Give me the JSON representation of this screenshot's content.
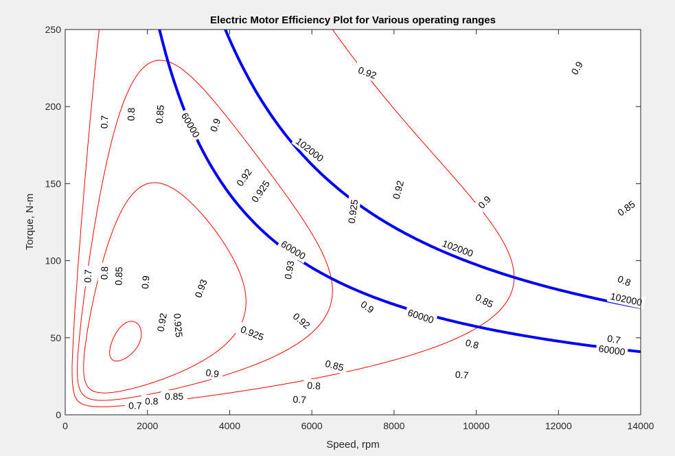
{
  "chart_data": {
    "type": "contour",
    "title": "Electric Motor Efficiency Plot for Various operating ranges",
    "xlabel": "Speed, rpm",
    "ylabel": "Torque, N-m",
    "xlim": [
      0,
      14000
    ],
    "ylim": [
      0,
      250
    ],
    "xticks": [
      0,
      2000,
      4000,
      6000,
      8000,
      10000,
      12000,
      14000
    ],
    "yticks": [
      0,
      50,
      100,
      150,
      200,
      250
    ],
    "grid": false,
    "efficiency_contours": {
      "color": "#ff0000",
      "levels": [
        0.7,
        0.8,
        0.85,
        0.9,
        0.92,
        0.925,
        0.93
      ],
      "labels": [
        {
          "text": "0.7",
          "x": 950,
          "y": 190,
          "angle": -88
        },
        {
          "text": "0.8",
          "x": 1600,
          "y": 195,
          "angle": -88
        },
        {
          "text": "0.85",
          "x": 2300,
          "y": 195,
          "angle": -85
        },
        {
          "text": "0.9",
          "x": 3650,
          "y": 188,
          "angle": -70
        },
        {
          "text": "0.92",
          "x": 7350,
          "y": 222,
          "angle": 20
        },
        {
          "text": "0.9",
          "x": 12450,
          "y": 225,
          "angle": -60
        },
        {
          "text": "0.92",
          "x": 4350,
          "y": 154,
          "angle": -55
        },
        {
          "text": "0.925",
          "x": 4750,
          "y": 145,
          "angle": -55
        },
        {
          "text": "0.925",
          "x": 7000,
          "y": 132,
          "angle": -82
        },
        {
          "text": "0.92",
          "x": 8100,
          "y": 146,
          "angle": -75
        },
        {
          "text": "0.9",
          "x": 10200,
          "y": 138,
          "angle": -45
        },
        {
          "text": "0.85",
          "x": 13650,
          "y": 134,
          "angle": -35
        },
        {
          "text": "0.7",
          "x": 550,
          "y": 90,
          "angle": -88
        },
        {
          "text": "0.8",
          "x": 950,
          "y": 92,
          "angle": -88
        },
        {
          "text": "0.85",
          "x": 1300,
          "y": 90,
          "angle": -88
        },
        {
          "text": "0.9",
          "x": 1950,
          "y": 86,
          "angle": -85
        },
        {
          "text": "0.93",
          "x": 3300,
          "y": 82,
          "angle": -70
        },
        {
          "text": "0.93",
          "x": 5450,
          "y": 94,
          "angle": -80
        },
        {
          "text": "0.92",
          "x": 2350,
          "y": 60,
          "angle": -80
        },
        {
          "text": "0.925",
          "x": 2750,
          "y": 58,
          "angle": 85
        },
        {
          "text": "0.925",
          "x": 4550,
          "y": 53,
          "angle": 22
        },
        {
          "text": "0.92",
          "x": 5750,
          "y": 61,
          "angle": 40
        },
        {
          "text": "0.9",
          "x": 7350,
          "y": 70,
          "angle": 35
        },
        {
          "text": "0.85",
          "x": 10200,
          "y": 74,
          "angle": 28
        },
        {
          "text": "0.8",
          "x": 13600,
          "y": 87,
          "angle": 22
        },
        {
          "text": "0.9",
          "x": 3580,
          "y": 27,
          "angle": 8
        },
        {
          "text": "0.85",
          "x": 6550,
          "y": 32,
          "angle": 15
        },
        {
          "text": "0.8",
          "x": 9900,
          "y": 46,
          "angle": 15
        },
        {
          "text": "0.7",
          "x": 13350,
          "y": 49,
          "angle": 10
        },
        {
          "text": "0.85",
          "x": 2650,
          "y": 12,
          "angle": 0
        },
        {
          "text": "0.8",
          "x": 6050,
          "y": 19,
          "angle": 4
        },
        {
          "text": "0.7",
          "x": 9650,
          "y": 26,
          "angle": 5
        },
        {
          "text": "0.8",
          "x": 2100,
          "y": 9,
          "angle": 0
        },
        {
          "text": "0.7",
          "x": 1700,
          "y": 6,
          "angle": 0
        },
        {
          "text": "0.7",
          "x": 5700,
          "y": 10,
          "angle": 3
        }
      ]
    },
    "power_contours": {
      "color": "#0000ff",
      "levels": [
        60000,
        102000
      ],
      "labels": [
        {
          "text": "60000",
          "x": 3050,
          "y": 188,
          "angle": 60
        },
        {
          "text": "60000",
          "x": 5550,
          "y": 107,
          "angle": 32
        },
        {
          "text": "60000",
          "x": 8650,
          "y": 64,
          "angle": 18
        },
        {
          "text": "60000",
          "x": 13300,
          "y": 42,
          "angle": 8
        },
        {
          "text": "102000",
          "x": 5950,
          "y": 172,
          "angle": 38
        },
        {
          "text": "102000",
          "x": 9550,
          "y": 108,
          "angle": 20
        },
        {
          "text": "102000",
          "x": 13650,
          "y": 75,
          "angle": 12
        }
      ]
    }
  }
}
